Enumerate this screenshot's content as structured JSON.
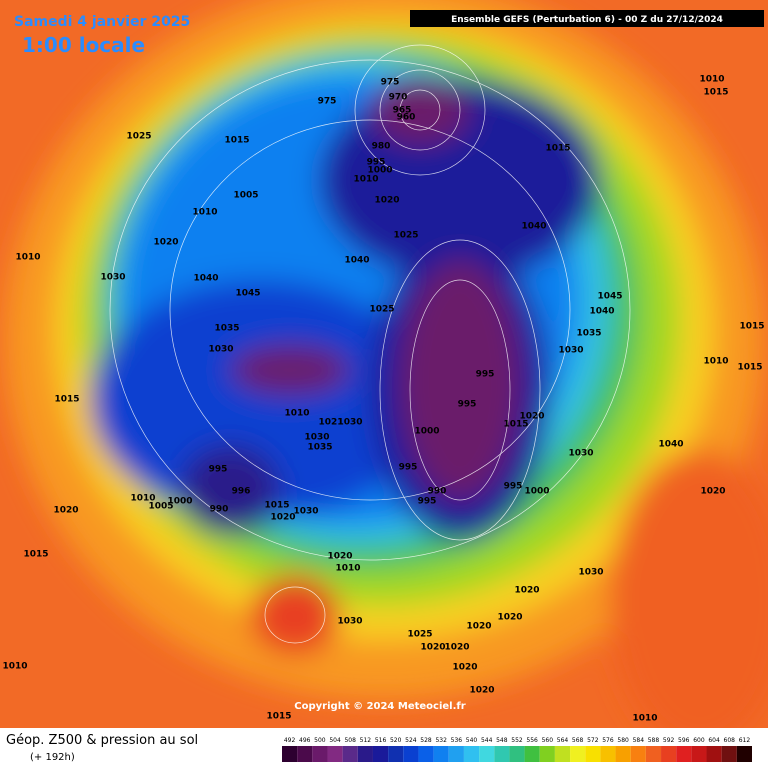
{
  "header": {
    "date": "Samedi 4 janvier 2025",
    "time": "1:00 locale",
    "model": "Ensemble GEFS  (Perturbation 6)  -  00 Z du 27/12/2024"
  },
  "copyright": "Copyright © 2024 Meteociel.fr",
  "footer": {
    "title": "Géop. Z500 & pression au sol",
    "lead": "(+ 192h)"
  },
  "pressure_labels": [
    "975",
    "975",
    "970",
    "965",
    "960",
    "980",
    "995",
    "1000",
    "1010",
    "1015",
    "1010",
    "1015",
    "1025",
    "1015",
    "1005",
    "1010",
    "1020",
    "1025",
    "1040",
    "1020",
    "1010",
    "1030",
    "1040",
    "1045",
    "1040",
    "1025",
    "1045",
    "1040",
    "1035",
    "1030",
    "1035",
    "1030",
    "995",
    "995",
    "1010",
    "1015",
    "1015",
    "1015",
    "1010",
    "1021",
    "1030",
    "1000",
    "1020",
    "1015",
    "1040",
    "1030",
    "1030",
    "1035",
    "995",
    "995",
    "990",
    "995",
    "995",
    "1000",
    "1020",
    "996",
    "1010",
    "1000",
    "1005",
    "990",
    "1015",
    "1020",
    "1030",
    "1020",
    "1015",
    "1020",
    "1010",
    "1030",
    "1020",
    "1020",
    "1030",
    "1020",
    "1025",
    "1020",
    "1020",
    "1020",
    "1010",
    "1020",
    "1015",
    "1010"
  ],
  "legend": {
    "values": [
      492,
      496,
      500,
      504,
      508,
      512,
      516,
      520,
      524,
      528,
      532,
      536,
      540,
      544,
      548,
      552,
      556,
      560,
      564,
      568,
      572,
      576,
      580,
      584,
      588,
      592,
      596,
      600,
      604,
      608,
      612
    ],
    "colors": [
      "#2d0030",
      "#4b0a4b",
      "#6a1a6a",
      "#822a82",
      "#5a2a8a",
      "#2a1a8a",
      "#1a1a9a",
      "#1030b0",
      "#0a40d0",
      "#0a60e8",
      "#1080f0",
      "#20a0f0",
      "#30c0f0",
      "#40d8e0",
      "#30c8b0",
      "#30c080",
      "#40c040",
      "#80d020",
      "#c0e020",
      "#f0f020",
      "#f8e000",
      "#f8c000",
      "#f8a000",
      "#f88010",
      "#f06020",
      "#e84020",
      "#e02020",
      "#c81818",
      "#a01010",
      "#701010",
      "#200000"
    ]
  }
}
